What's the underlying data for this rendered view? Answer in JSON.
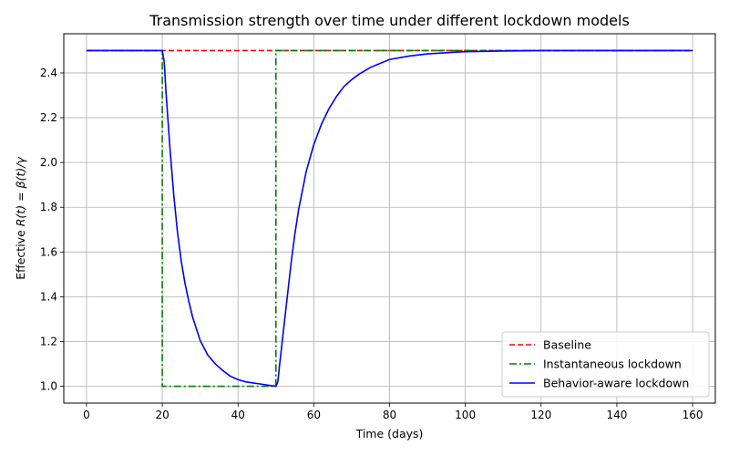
{
  "chart_data": {
    "type": "line",
    "title": "Transmission strength over time under different lockdown models",
    "xlabel": "Time (days)",
    "ylabel": {
      "prefix": "Effective ",
      "math": "R(t) = β(t)/γ"
    },
    "xlim": [
      -6,
      166
    ],
    "ylim": [
      0.925,
      2.575
    ],
    "xticks": [
      0,
      20,
      40,
      60,
      80,
      100,
      120,
      140,
      160
    ],
    "yticks": [
      1.0,
      1.2,
      1.4,
      1.6,
      1.8,
      2.0,
      2.2,
      2.4
    ],
    "xtick_labels": [
      "0",
      "20",
      "40",
      "60",
      "80",
      "100",
      "120",
      "140",
      "160"
    ],
    "ytick_labels": [
      "1.0",
      "1.2",
      "1.4",
      "1.6",
      "1.8",
      "2.0",
      "2.2",
      "2.4"
    ],
    "grid": true,
    "legend_position": "lower right",
    "series": [
      {
        "name": "Baseline",
        "color": "#ff0000",
        "dash": "dashed",
        "x": [
          0,
          160
        ],
        "y": [
          2.5,
          2.5
        ]
      },
      {
        "name": "Instantaneous lockdown",
        "color": "#008000",
        "dash": "dashdot",
        "x": [
          0,
          20,
          20,
          50,
          50,
          160
        ],
        "y": [
          2.5,
          2.5,
          1.0,
          1.0,
          2.5,
          2.5
        ]
      },
      {
        "name": "Behavior-aware lockdown",
        "color": "#0000ff",
        "dash": "solid",
        "x": [
          0,
          20,
          20.5,
          21,
          22,
          23,
          24,
          25,
          26,
          27,
          28,
          30,
          32,
          34,
          36,
          38,
          40,
          42,
          44,
          46,
          48,
          50,
          50.5,
          51,
          52,
          53,
          54,
          55,
          56,
          58,
          60,
          62,
          64,
          66,
          68,
          70,
          72,
          75,
          80,
          85,
          90,
          95,
          100,
          110,
          120,
          130,
          140,
          160
        ],
        "y": [
          2.5,
          2.5,
          2.45,
          2.31,
          2.07,
          1.86,
          1.69,
          1.56,
          1.46,
          1.38,
          1.31,
          1.205,
          1.14,
          1.1,
          1.07,
          1.045,
          1.03,
          1.02,
          1.015,
          1.01,
          1.005,
          1.0,
          1.02,
          1.1,
          1.25,
          1.4,
          1.55,
          1.68,
          1.79,
          1.96,
          2.08,
          2.17,
          2.24,
          2.295,
          2.34,
          2.37,
          2.395,
          2.425,
          2.46,
          2.475,
          2.485,
          2.49,
          2.495,
          2.498,
          2.5,
          2.5,
          2.5,
          2.5
        ]
      }
    ]
  }
}
